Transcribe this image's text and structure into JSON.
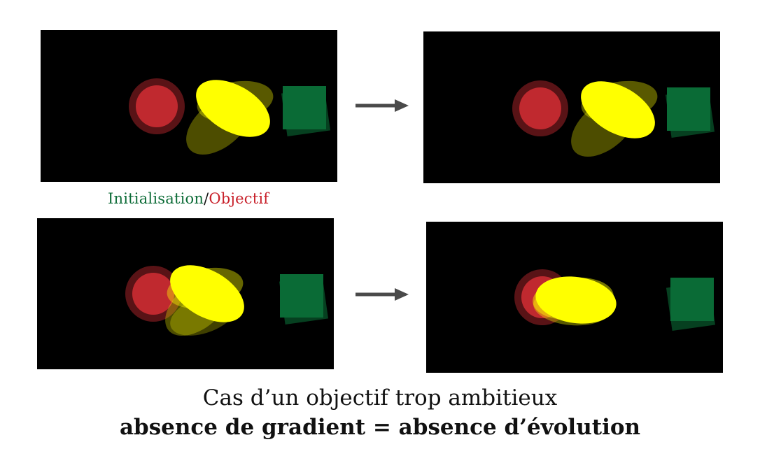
{
  "legend": {
    "initial_label": "Initialisation",
    "separator": "/",
    "target_label": "Objectif",
    "initial_color": "#0b6b36",
    "target_color": "#c8202a"
  },
  "caption": {
    "line1": "Cas d’un objectif trop ambitieux",
    "line2": "absence de gradient = absence d’évolution"
  },
  "colors": {
    "background": "#000000",
    "circle": "#c62a30",
    "ellipse": "#ffff00",
    "square": "#0a6b36",
    "arrow": "#4a4a4a"
  },
  "rows": [
    {
      "name": "row-top",
      "left_panel": "init-panel",
      "right_panel": "result-panel",
      "arrow": "right-arrow"
    },
    {
      "name": "row-bottom",
      "left_panel": "init-panel",
      "right_panel": "result-panel",
      "arrow": "right-arrow"
    }
  ]
}
